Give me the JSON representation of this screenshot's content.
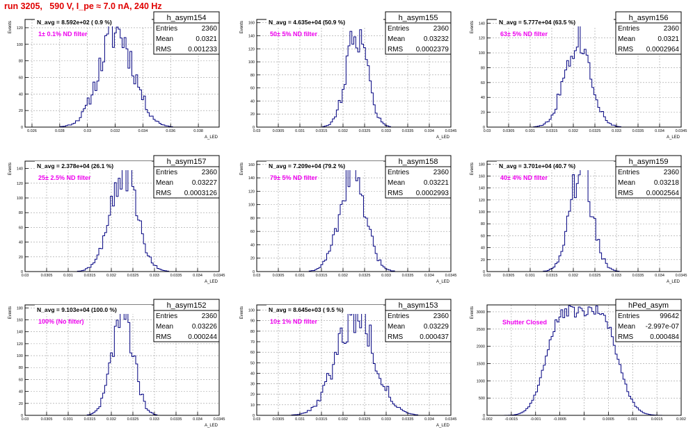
{
  "header": {
    "title": "run 3205,   590 V, I_pe ≈ 7.0 nA, 240 Hz"
  },
  "colors": {
    "histogram": "#000080",
    "annotation": "#ee00ee",
    "title": "#e00000",
    "grid": "#9a9a9a"
  },
  "chart_data": [
    {
      "type": "histogram",
      "name": "h_asym154",
      "title": "N_avg = 8.592e+02 ( 0.9 %)",
      "annotation": "1± 0.1% ND filter",
      "stats": [
        [
          "Entries",
          "2360"
        ],
        [
          "Mean",
          "0.0321"
        ],
        [
          "RMS",
          "0.001233"
        ]
      ],
      "xlabel": "A_LED",
      "ylabel": "Events",
      "xlim": [
        0.0255,
        0.0395
      ],
      "ylim": [
        0,
        130
      ],
      "xticks": [
        0.026,
        0.028,
        0.03,
        0.032,
        0.034,
        0.036,
        0.038
      ],
      "xtick_labels": [
        "0.026",
        "0.028",
        "0.03",
        "0.032",
        "0.034",
        "0.036",
        "0.038"
      ],
      "yticks": [
        0,
        20,
        40,
        60,
        80,
        100,
        120
      ],
      "ytick_labels": [
        "0",
        "20",
        "40",
        "60",
        "80",
        "100",
        "120"
      ],
      "mean": 0.0321,
      "sigma": 0.001233,
      "peak": 116,
      "seed": 11
    },
    {
      "type": "histogram",
      "name": "h_asym155",
      "title": "N_avg = 4.635e+04 (50.9 %)",
      "annotation": "50± 5% ND filter",
      "stats": [
        [
          "Entries",
          "2360"
        ],
        [
          "Mean",
          "0.03232"
        ],
        [
          "RMS",
          "0.0002379"
        ]
      ],
      "xlabel": "A_LED",
      "ylabel": "Events",
      "xlim": [
        0.03,
        0.0345
      ],
      "ylim": [
        0,
        165
      ],
      "xticks": [
        0.03,
        0.0305,
        0.031,
        0.0315,
        0.032,
        0.0325,
        0.033,
        0.0335,
        0.034,
        0.0345
      ],
      "xtick_labels": [
        "0.03",
        "0.0305",
        "0.031",
        "0.0315",
        "0.032",
        "0.0325",
        "0.033",
        "0.0335",
        "0.034",
        "0.0345"
      ],
      "yticks": [
        0,
        20,
        40,
        60,
        80,
        100,
        120,
        140,
        160
      ],
      "ytick_labels": [
        "0",
        "20",
        "40",
        "60",
        "80",
        "100",
        "120",
        "140",
        "160"
      ],
      "mean": 0.03232,
      "sigma": 0.0002379,
      "peak": 150,
      "seed": 22
    },
    {
      "type": "histogram",
      "name": "h_asym156",
      "title": "N_avg = 5.777e+04 (63.5 %)",
      "annotation": "63± 5% ND filter",
      "stats": [
        [
          "Entries",
          "2360"
        ],
        [
          "Mean",
          "0.0321"
        ],
        [
          "RMS",
          "0.0002964"
        ]
      ],
      "xlabel": "A_LED",
      "ylabel": "Events",
      "xlim": [
        0.03,
        0.0345
      ],
      "ylim": [
        0,
        145
      ],
      "xticks": [
        0.03,
        0.0305,
        0.031,
        0.0315,
        0.032,
        0.0325,
        0.033,
        0.0335,
        0.034,
        0.0345
      ],
      "xtick_labels": [
        "0.03",
        "0.0305",
        "0.031",
        "0.0315",
        "0.032",
        "0.0325",
        "0.033",
        "0.0335",
        "0.034",
        "0.0345"
      ],
      "yticks": [
        0,
        20,
        40,
        60,
        80,
        100,
        120,
        140
      ],
      "ytick_labels": [
        "0",
        "20",
        "40",
        "60",
        "80",
        "100",
        "120",
        "140"
      ],
      "mean": 0.0321,
      "sigma": 0.0002964,
      "peak": 125,
      "seed": 33
    },
    {
      "type": "histogram",
      "name": "h_asym157",
      "title": "N_avg = 2.378e+04 (26.1 %)",
      "annotation": "25± 2.5% ND filter",
      "stats": [
        [
          "Entries",
          "2360"
        ],
        [
          "Mean",
          "0.03227"
        ],
        [
          "RMS",
          "0.0003126"
        ]
      ],
      "xlabel": "A_LED",
      "ylabel": "Events",
      "xlim": [
        0.03,
        0.0345
      ],
      "ylim": [
        0,
        150
      ],
      "xticks": [
        0.03,
        0.0305,
        0.031,
        0.0315,
        0.032,
        0.0325,
        0.033,
        0.0335,
        0.034,
        0.0345
      ],
      "xtick_labels": [
        "0.03",
        "0.0305",
        "0.031",
        "0.0315",
        "0.032",
        "0.0325",
        "0.033",
        "0.0335",
        "0.034",
        "0.0345"
      ],
      "yticks": [
        0,
        20,
        40,
        60,
        80,
        100,
        120,
        140
      ],
      "ytick_labels": [
        "0",
        "20",
        "40",
        "60",
        "80",
        "100",
        "120",
        "140"
      ],
      "mean": 0.03227,
      "sigma": 0.0003126,
      "peak": 138,
      "seed": 44
    },
    {
      "type": "histogram",
      "name": "h_asym158",
      "title": "N_avg = 7.209e+04 (79.2 %)",
      "annotation": "79± 5% ND filter",
      "stats": [
        [
          "Entries",
          "2360"
        ],
        [
          "Mean",
          "0.03221"
        ],
        [
          "RMS",
          "0.0002993"
        ]
      ],
      "xlabel": "A_LED",
      "ylabel": "Events",
      "xlim": [
        0.03,
        0.0345
      ],
      "ylim": [
        0,
        165
      ],
      "xticks": [
        0.03,
        0.0305,
        0.031,
        0.0315,
        0.032,
        0.0325,
        0.033,
        0.0335,
        0.034,
        0.0345
      ],
      "xtick_labels": [
        "0.03",
        "0.0305",
        "0.031",
        "0.0315",
        "0.032",
        "0.0325",
        "0.033",
        "0.0335",
        "0.034",
        "0.0345"
      ],
      "yticks": [
        0,
        20,
        40,
        60,
        80,
        100,
        120,
        140,
        160
      ],
      "ytick_labels": [
        "0",
        "20",
        "40",
        "60",
        "80",
        "100",
        "120",
        "140",
        "160"
      ],
      "mean": 0.03221,
      "sigma": 0.0002993,
      "peak": 148,
      "seed": 55
    },
    {
      "type": "histogram",
      "name": "h_asym159",
      "title": "N_avg = 3.701e+04 (40.7 %)",
      "annotation": "40± 4% ND filter",
      "stats": [
        [
          "Entries",
          "2360"
        ],
        [
          "Mean",
          "0.03218"
        ],
        [
          "RMS",
          "0.0002564"
        ]
      ],
      "xlabel": "A_LED",
      "ylabel": "Events",
      "xlim": [
        0.03,
        0.0345
      ],
      "ylim": [
        0,
        185
      ],
      "xticks": [
        0.03,
        0.0305,
        0.031,
        0.0315,
        0.032,
        0.0325,
        0.033,
        0.0335,
        0.034,
        0.0345
      ],
      "xtick_labels": [
        "0.03",
        "0.0305",
        "0.031",
        "0.0315",
        "0.032",
        "0.0325",
        "0.033",
        "0.0335",
        "0.034",
        "0.0345"
      ],
      "yticks": [
        0,
        20,
        40,
        60,
        80,
        100,
        120,
        140,
        160,
        180
      ],
      "ytick_labels": [
        "0",
        "20",
        "40",
        "60",
        "80",
        "100",
        "120",
        "140",
        "160",
        "180"
      ],
      "mean": 0.03218,
      "sigma": 0.0002564,
      "peak": 172,
      "seed": 66
    },
    {
      "type": "histogram",
      "name": "h_asym152",
      "title": "N_avg = 9.103e+04 (100.0 %)",
      "annotation": "100% (No filter)",
      "stats": [
        [
          "Entries",
          "2360"
        ],
        [
          "Mean",
          "0.03226"
        ],
        [
          "RMS",
          "0.000244"
        ]
      ],
      "xlabel": "A_LED",
      "ylabel": "Events",
      "xlim": [
        0.03,
        0.0345
      ],
      "ylim": [
        0,
        185
      ],
      "xticks": [
        0.03,
        0.0305,
        0.031,
        0.0315,
        0.032,
        0.0325,
        0.033,
        0.0335,
        0.034,
        0.0345
      ],
      "xtick_labels": [
        "0.03",
        "0.0305",
        "0.031",
        "0.0315",
        "0.032",
        "0.0325",
        "0.033",
        "0.0335",
        "0.034",
        "0.0345"
      ],
      "yticks": [
        0,
        20,
        40,
        60,
        80,
        100,
        120,
        140,
        160,
        180
      ],
      "ytick_labels": [
        "0",
        "20",
        "40",
        "60",
        "80",
        "100",
        "120",
        "140",
        "160",
        "180"
      ],
      "mean": 0.03226,
      "sigma": 0.000244,
      "peak": 176,
      "seed": 77
    },
    {
      "type": "histogram",
      "name": "h_asym153",
      "title": "N_avg = 8.645e+03 ( 9.5 %)",
      "annotation": "10± 1% ND filter",
      "stats": [
        [
          "Entries",
          "2360"
        ],
        [
          "Mean",
          "0.03229"
        ],
        [
          "RMS",
          "0.000437"
        ]
      ],
      "xlabel": "A_LED",
      "ylabel": "Events",
      "xlim": [
        0.03,
        0.0345
      ],
      "ylim": [
        0,
        105
      ],
      "xticks": [
        0.03,
        0.0305,
        0.031,
        0.0315,
        0.032,
        0.0325,
        0.033,
        0.0335,
        0.034,
        0.0345
      ],
      "xtick_labels": [
        "0.03",
        "0.0305",
        "0.031",
        "0.0315",
        "0.032",
        "0.0325",
        "0.033",
        "0.0335",
        "0.034",
        "0.0345"
      ],
      "yticks": [
        0,
        10,
        20,
        30,
        40,
        50,
        60,
        70,
        80,
        90,
        100
      ],
      "ytick_labels": [
        "0",
        "10",
        "20",
        "30",
        "40",
        "50",
        "60",
        "70",
        "80",
        "90",
        "100"
      ],
      "mean": 0.03229,
      "sigma": 0.000437,
      "peak": 98,
      "seed": 88
    },
    {
      "type": "histogram",
      "name": "hPed_asym",
      "title": "",
      "annotation": "Shutter Closed",
      "stats": [
        [
          "Entries",
          "99642"
        ],
        [
          "Mean",
          "-2.997e-07"
        ],
        [
          "RMS",
          "0.000484"
        ]
      ],
      "xlabel": "",
      "ylabel": "Events",
      "xlim": [
        -0.002,
        0.002
      ],
      "ylim": [
        0,
        3200
      ],
      "xticks": [
        -0.002,
        -0.0015,
        -0.001,
        -0.0005,
        0,
        0.0005,
        0.001,
        0.0015,
        0.002
      ],
      "xtick_labels": [
        "-0.002",
        "-0.0015",
        "-0.001",
        "-0.0005",
        "0",
        "0.0005",
        "0.001",
        "0.0015",
        "0.002"
      ],
      "yticks": [
        0,
        500,
        1000,
        1500,
        2000,
        2500,
        3000
      ],
      "ytick_labels": [
        "0",
        "500",
        "1000",
        "1500",
        "2000",
        "2500",
        "3000"
      ],
      "mean": 0,
      "sigma": 0.000484,
      "peak": 3000,
      "seed": 99,
      "shape": "double"
    }
  ]
}
